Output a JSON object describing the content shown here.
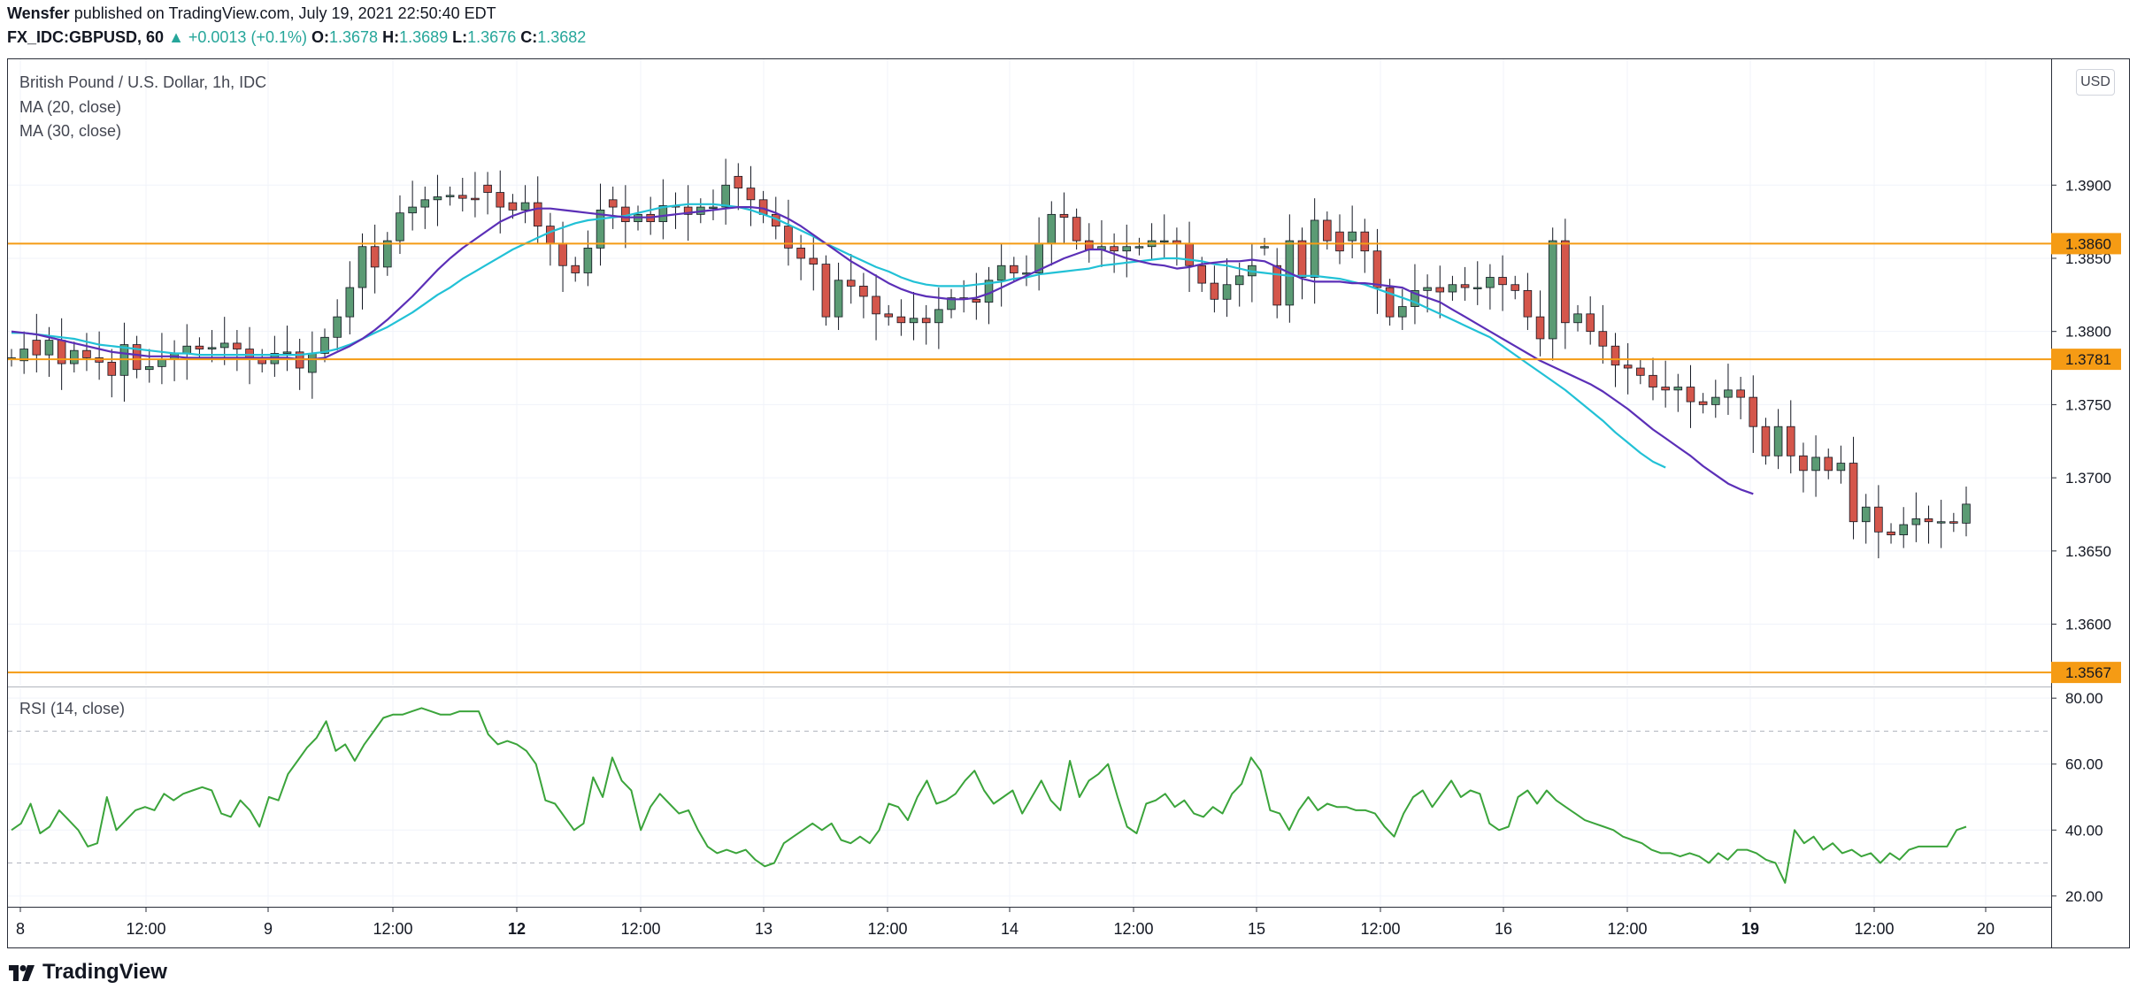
{
  "header": {
    "author": "Wensfer",
    "published": " published on TradingView.com, July 19, 2021 22:50:40 EDT",
    "symbol": "FX_IDC:GBPUSD, 60",
    "change": "▲ +0.0013 (+0.1%)",
    "o_label": "O:",
    "o_value": "1.3678",
    "h_label": "H:",
    "h_value": "1.3689",
    "l_label": "L:",
    "l_value": "1.3676",
    "c_label": "C:",
    "c_value": "1.3682"
  },
  "legend": {
    "title": "British Pound / U.S. Dollar, 1h, IDC",
    "ma20": "MA (20, close)",
    "ma30": "MA (30, close)",
    "rsi": "RSI (14, close)"
  },
  "currency": "USD",
  "footer": {
    "brand": "TradingView"
  },
  "colors": {
    "up": "#26a69a",
    "up_fill": "#5b9b74",
    "down": "#ef5350",
    "down_fill": "#d4564b",
    "ma20": "#5b2fb7",
    "ma30": "#22c1d6",
    "level": "#f59b14",
    "rsi": "#3ba43b"
  },
  "chart_data": [
    {
      "type": "candlestick",
      "title": "British Pound / U.S. Dollar, 1h, IDC",
      "ylim": [
        1.3558,
        1.3986
      ],
      "y_ticks": [
        "1.3900",
        "1.3850",
        "1.3800",
        "1.3750",
        "1.3700",
        "1.3650",
        "1.3600"
      ],
      "x_ticks": [
        "8",
        "12:00",
        "9",
        "12:00",
        "12",
        "12:00",
        "13",
        "12:00",
        "14",
        "12:00",
        "15",
        "12:00",
        "16",
        "12:00",
        "19",
        "12:00",
        "20"
      ],
      "x_ticks_bold": [
        false,
        false,
        false,
        false,
        true,
        false,
        false,
        false,
        false,
        false,
        false,
        false,
        false,
        false,
        true,
        false,
        false
      ],
      "levels": [
        {
          "value": 1.386,
          "label": "1.3860"
        },
        {
          "value": 1.3781,
          "label": "1.3781"
        },
        {
          "value": 1.3567,
          "label": "1.3567"
        }
      ],
      "close": [
        1.3782,
        1.3788,
        1.3784,
        1.3794,
        1.3778,
        1.3787,
        1.3782,
        1.3779,
        1.377,
        1.3791,
        1.3774,
        1.3776,
        1.3781,
        1.3785,
        1.379,
        1.3788,
        1.3789,
        1.3792,
        1.3788,
        1.3782,
        1.3778,
        1.3785,
        1.3786,
        1.3775,
        1.3785,
        1.3796,
        1.381,
        1.383,
        1.3858,
        1.3844,
        1.3862,
        1.3881,
        1.3885,
        1.389,
        1.3892,
        1.3893,
        1.3891,
        1.389,
        1.3895,
        1.3885,
        1.3883,
        1.3888,
        1.3872,
        1.386,
        1.3845,
        1.384,
        1.3857,
        1.3883,
        1.3885,
        1.3875,
        1.388,
        1.3875,
        1.3886,
        1.3885,
        1.388,
        1.3885,
        1.3885,
        1.39,
        1.3898,
        1.389,
        1.388,
        1.3872,
        1.3857,
        1.385,
        1.3846,
        1.381,
        1.3835,
        1.3831,
        1.3824,
        1.3812,
        1.381,
        1.3806,
        1.3809,
        1.3806,
        1.3815,
        1.3823,
        1.3822,
        1.382,
        1.3835,
        1.3845,
        1.384,
        1.384,
        1.386,
        1.388,
        1.3878,
        1.3862,
        1.3856,
        1.3858,
        1.3855,
        1.3858,
        1.3858,
        1.3862,
        1.3862,
        1.386,
        1.3845,
        1.3833,
        1.3822,
        1.3832,
        1.3838,
        1.3845,
        1.3858,
        1.3818,
        1.3862,
        1.3837,
        1.3876,
        1.3862,
        1.3855,
        1.3868,
        1.3855,
        1.383,
        1.381,
        1.3817,
        1.3828,
        1.383,
        1.3827,
        1.3832,
        1.383,
        1.383,
        1.3837,
        1.3832,
        1.3828,
        1.381,
        1.3795,
        1.3862,
        1.3806,
        1.3812,
        1.38,
        1.379,
        1.3777,
        1.3775,
        1.377,
        1.3762,
        1.376,
        1.3762,
        1.3752,
        1.375,
        1.3755,
        1.376,
        1.3755,
        1.3735,
        1.3715,
        1.3735,
        1.3715,
        1.3705,
        1.3714,
        1.3705,
        1.371,
        1.367,
        1.368,
        1.3663,
        1.3661,
        1.3668,
        1.3672,
        1.367,
        1.367,
        1.3669,
        1.3682
      ],
      "open": [
        1.3782,
        1.378,
        1.3794,
        1.3784,
        1.3794,
        1.3778,
        1.3787,
        1.3782,
        1.3779,
        1.377,
        1.3791,
        1.3774,
        1.3776,
        1.3781,
        1.3785,
        1.379,
        1.3788,
        1.3789,
        1.3792,
        1.3788,
        1.3782,
        1.3778,
        1.3785,
        1.3786,
        1.3772,
        1.3785,
        1.3796,
        1.381,
        1.383,
        1.3858,
        1.3844,
        1.3862,
        1.3881,
        1.3885,
        1.389,
        1.3892,
        1.3893,
        1.3891,
        1.39,
        1.3895,
        1.3888,
        1.3883,
        1.3888,
        1.3872,
        1.386,
        1.3845,
        1.384,
        1.3857,
        1.389,
        1.3885,
        1.3875,
        1.388,
        1.3875,
        1.3886,
        1.3885,
        1.388,
        1.3885,
        1.3885,
        1.3906,
        1.3898,
        1.389,
        1.388,
        1.3872,
        1.3857,
        1.385,
        1.3846,
        1.381,
        1.3835,
        1.3831,
        1.3824,
        1.3812,
        1.381,
        1.3806,
        1.3809,
        1.3806,
        1.3815,
        1.3823,
        1.3822,
        1.382,
        1.3835,
        1.3845,
        1.384,
        1.384,
        1.386,
        1.388,
        1.3878,
        1.3862,
        1.3856,
        1.3858,
        1.3855,
        1.3858,
        1.3858,
        1.3862,
        1.3862,
        1.386,
        1.3845,
        1.3833,
        1.3822,
        1.3832,
        1.3838,
        1.3858,
        1.3845,
        1.3818,
        1.3862,
        1.3837,
        1.3876,
        1.3868,
        1.3862,
        1.3868,
        1.3855,
        1.383,
        1.381,
        1.3817,
        1.3828,
        1.383,
        1.3827,
        1.3832,
        1.383,
        1.383,
        1.3837,
        1.3832,
        1.3828,
        1.381,
        1.3795,
        1.3862,
        1.3806,
        1.3812,
        1.38,
        1.379,
        1.3777,
        1.3775,
        1.377,
        1.3762,
        1.376,
        1.3762,
        1.3752,
        1.375,
        1.3755,
        1.376,
        1.3755,
        1.3735,
        1.3715,
        1.3735,
        1.3715,
        1.3705,
        1.3714,
        1.3705,
        1.371,
        1.367,
        1.368,
        1.3663,
        1.3661,
        1.3668,
        1.3672,
        1.367,
        1.367,
        1.3669
      ],
      "ma20": [
        1.38,
        1.3799,
        1.3798,
        1.3796,
        1.3794,
        1.3792,
        1.379,
        1.3788,
        1.3786,
        1.3785,
        1.3784,
        1.3783,
        1.3783,
        1.3783,
        1.3782,
        1.3782,
        1.3782,
        1.3782,
        1.3782,
        1.3782,
        1.3782,
        1.3782,
        1.3782,
        1.3781,
        1.3781,
        1.3782,
        1.3786,
        1.379,
        1.3795,
        1.3801,
        1.3808,
        1.3816,
        1.3824,
        1.3833,
        1.3842,
        1.385,
        1.3857,
        1.3863,
        1.3869,
        1.3875,
        1.3879,
        1.3882,
        1.3884,
        1.3884,
        1.3883,
        1.3882,
        1.3881,
        1.388,
        1.3879,
        1.3878,
        1.3878,
        1.3878,
        1.3879,
        1.388,
        1.3881,
        1.3882,
        1.3883,
        1.3884,
        1.3885,
        1.3885,
        1.3884,
        1.3881,
        1.3877,
        1.3872,
        1.3866,
        1.386,
        1.3854,
        1.3848,
        1.3843,
        1.3838,
        1.3833,
        1.3829,
        1.3826,
        1.3824,
        1.3823,
        1.3822,
        1.3822,
        1.3823,
        1.3826,
        1.383,
        1.3834,
        1.3838,
        1.3842,
        1.3846,
        1.385,
        1.3853,
        1.3856,
        1.3856,
        1.3853,
        1.385,
        1.3848,
        1.3846,
        1.3845,
        1.3843,
        1.3844,
        1.3846,
        1.3847,
        1.3848,
        1.3848,
        1.3849,
        1.3848,
        1.3844,
        1.384,
        1.3836,
        1.3834,
        1.3834,
        1.3834,
        1.3833,
        1.3833,
        1.3832,
        1.3831,
        1.383,
        1.3826,
        1.3823,
        1.382,
        1.3815,
        1.381,
        1.3805,
        1.38,
        1.3795,
        1.379,
        1.3785,
        1.378,
        1.3776,
        1.3772,
        1.3768,
        1.3764,
        1.3759,
        1.3753,
        1.3747,
        1.374,
        1.3733,
        1.3727,
        1.3721,
        1.3715,
        1.3708,
        1.3702,
        1.3696,
        1.3692,
        1.3689
      ],
      "ma30": [
        1.3799,
        1.3799,
        1.3798,
        1.3797,
        1.3796,
        1.3795,
        1.3793,
        1.3791,
        1.379,
        1.3789,
        1.3788,
        1.3787,
        1.3786,
        1.3785,
        1.3785,
        1.3784,
        1.3784,
        1.3784,
        1.3784,
        1.3784,
        1.3784,
        1.3784,
        1.3784,
        1.3784,
        1.3785,
        1.3786,
        1.3788,
        1.3791,
        1.3795,
        1.3799,
        1.3803,
        1.3808,
        1.3813,
        1.3819,
        1.3825,
        1.383,
        1.3836,
        1.3841,
        1.3846,
        1.3851,
        1.3856,
        1.386,
        1.3864,
        1.3868,
        1.3871,
        1.3874,
        1.3876,
        1.3877,
        1.3878,
        1.3879,
        1.3881,
        1.3883,
        1.3885,
        1.3886,
        1.3887,
        1.3887,
        1.3887,
        1.3886,
        1.3885,
        1.3883,
        1.388,
        1.3877,
        1.3873,
        1.3869,
        1.3865,
        1.386,
        1.3856,
        1.3852,
        1.3848,
        1.3844,
        1.3841,
        1.3837,
        1.3834,
        1.3832,
        1.3831,
        1.3831,
        1.3831,
        1.3832,
        1.3833,
        1.3834,
        1.3836,
        1.3837,
        1.3839,
        1.384,
        1.3841,
        1.3842,
        1.3843,
        1.3845,
        1.3846,
        1.3847,
        1.3848,
        1.3849,
        1.385,
        1.385,
        1.3849,
        1.3848,
        1.3846,
        1.3845,
        1.3843,
        1.3841,
        1.384,
        1.3839,
        1.3838,
        1.3838,
        1.3838,
        1.3837,
        1.3836,
        1.3834,
        1.3832,
        1.3829,
        1.3826,
        1.3823,
        1.382,
        1.3816,
        1.3812,
        1.3808,
        1.3804,
        1.38,
        1.3796,
        1.379,
        1.3784,
        1.3778,
        1.3772,
        1.3766,
        1.376,
        1.3753,
        1.3746,
        1.3739,
        1.3731,
        1.3724,
        1.3717,
        1.3711,
        1.3707
      ]
    },
    {
      "type": "line",
      "title": "RSI (14, close)",
      "ylim": [
        17,
        83
      ],
      "y_ticks": [
        "80.00",
        "60.00",
        "40.00",
        "20.00"
      ],
      "bands": [
        70,
        30
      ],
      "series": [
        {
          "values": [
            40,
            42,
            48,
            39,
            41,
            46,
            43,
            40,
            35,
            36,
            50,
            40,
            43,
            46,
            47,
            46,
            51,
            49,
            51,
            52,
            53,
            52,
            45,
            44,
            49,
            46,
            41,
            50,
            49,
            57,
            61,
            65,
            68,
            73,
            64,
            66,
            61,
            66,
            70,
            74,
            75,
            75,
            76,
            77,
            76,
            75,
            75,
            76,
            76,
            76,
            69,
            66,
            67,
            66,
            64,
            60,
            49,
            48,
            44,
            40,
            42,
            56,
            50,
            62,
            55,
            52,
            40,
            47,
            51,
            48,
            45,
            46,
            40,
            35,
            33,
            34,
            33,
            34,
            31,
            29,
            30,
            36,
            38,
            40,
            42,
            40,
            42,
            37,
            36,
            38,
            36,
            40,
            48,
            47,
            43,
            50,
            55,
            48,
            49,
            51,
            55,
            58,
            52,
            48,
            50,
            52,
            45,
            50,
            55,
            49,
            46,
            61,
            50,
            55,
            57,
            60,
            50,
            41,
            39,
            48,
            49,
            51,
            47,
            49,
            45,
            44,
            47,
            45,
            51,
            54,
            62,
            58,
            46,
            45,
            40,
            46,
            50,
            46,
            48,
            47,
            47,
            46,
            46,
            45,
            41,
            38,
            45,
            50,
            52,
            47,
            51,
            55,
            50,
            52,
            51,
            42,
            40,
            41,
            50,
            52,
            48,
            52,
            49,
            47,
            45,
            43,
            42,
            41,
            40,
            38,
            37,
            36,
            34,
            33,
            33,
            32,
            33,
            32,
            30,
            33,
            31,
            34,
            34,
            33,
            31,
            30,
            24,
            40,
            36,
            38,
            34,
            36,
            33,
            34,
            32,
            33,
            30,
            33,
            31,
            34,
            35,
            35,
            35,
            35,
            40,
            41
          ]
        }
      ]
    }
  ]
}
